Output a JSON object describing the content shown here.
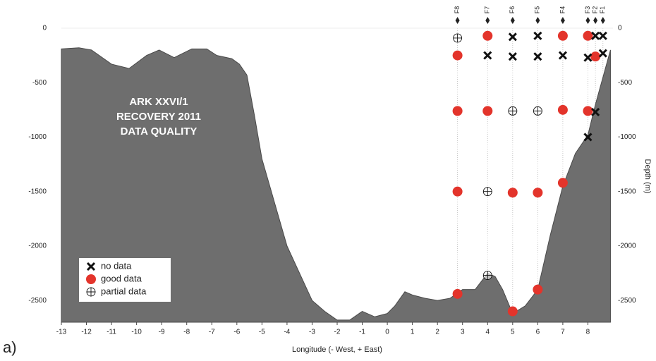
{
  "chart_data": {
    "type": "scatter",
    "panel_label": "a)",
    "title_lines": [
      "ARK XXVI/1",
      "RECOVERY 2011",
      "DATA QUALITY"
    ],
    "x_label": "Longitude (- West, + East)",
    "y_label": "Depth (m)",
    "xlim": [
      -13,
      9
    ],
    "ylim": [
      -2700,
      0
    ],
    "xticks": [
      -13,
      -12,
      -11,
      -10,
      -9,
      -8,
      -7,
      -6,
      -5,
      -4,
      -3,
      -2,
      -1,
      0,
      1,
      2,
      3,
      4,
      5,
      6,
      7,
      8
    ],
    "yticks": [
      0,
      -500,
      -1000,
      -1500,
      -2000,
      -2500
    ],
    "bathymetry": {
      "color": "#6e6e6e",
      "x": [
        -13,
        -12.3,
        -11.8,
        -11,
        -10.3,
        -9.6,
        -9.1,
        -8.5,
        -7.8,
        -7.2,
        -6.8,
        -6.2,
        -5.9,
        -5.6,
        -5.3,
        -5,
        -4.5,
        -4,
        -3.4,
        -3,
        -2.5,
        -2,
        -1.5,
        -1,
        -0.5,
        0,
        0.3,
        0.7,
        1,
        1.5,
        2,
        2.5,
        3,
        3.5,
        4,
        4.3,
        4.6,
        5,
        5.5,
        6,
        6.5,
        7,
        7.5,
        8,
        8.3,
        8.6,
        8.9
      ],
      "values": [
        -190,
        -180,
        -200,
        -330,
        -370,
        -250,
        -200,
        -270,
        -190,
        -190,
        -250,
        -280,
        -330,
        -430,
        -800,
        -1200,
        -1600,
        -2000,
        -2300,
        -2500,
        -2600,
        -2680,
        -2680,
        -2600,
        -2650,
        -2620,
        -2550,
        -2420,
        -2450,
        -2480,
        -2500,
        -2480,
        -2400,
        -2400,
        -2250,
        -2280,
        -2400,
        -2620,
        -2550,
        -2400,
        -1900,
        -1450,
        -1150,
        -980,
        -700,
        -450,
        -200
      ]
    },
    "moorings": [
      {
        "name": "F8",
        "x": 2.8
      },
      {
        "name": "F7",
        "x": 4
      },
      {
        "name": "F6",
        "x": 5
      },
      {
        "name": "F5",
        "x": 6
      },
      {
        "name": "F4",
        "x": 7
      },
      {
        "name": "F3",
        "x": 8
      },
      {
        "name": "F2",
        "x": 8.3
      },
      {
        "name": "F1",
        "x": 8.6
      }
    ],
    "series": [
      {
        "name": "no data",
        "marker": "x",
        "color": "#111111",
        "x": [
          4,
          5,
          5,
          6,
          6,
          7,
          8,
          8,
          8.3,
          8.3,
          8.6,
          8.6
        ],
        "values": [
          -250,
          -80,
          -260,
          -70,
          -260,
          -250,
          -270,
          -1000,
          -70,
          -770,
          -70,
          -230
        ]
      },
      {
        "name": "good data",
        "marker": "dot",
        "color": "#e3342b",
        "x": [
          2.8,
          2.8,
          2.8,
          2.8,
          4,
          4,
          5,
          5,
          6,
          6,
          7,
          7,
          7,
          8,
          8,
          8.3
        ],
        "values": [
          -250,
          -760,
          -1500,
          -2440,
          -70,
          -760,
          -1510,
          -2600,
          -1510,
          -2400,
          -70,
          -750,
          -1420,
          -70,
          -760,
          -260
        ]
      },
      {
        "name": "partial data",
        "marker": "plus",
        "color": "#111111",
        "x": [
          2.8,
          4,
          4,
          5,
          6
        ],
        "values": [
          -90,
          -1500,
          -2270,
          -760,
          -760
        ]
      }
    ]
  }
}
